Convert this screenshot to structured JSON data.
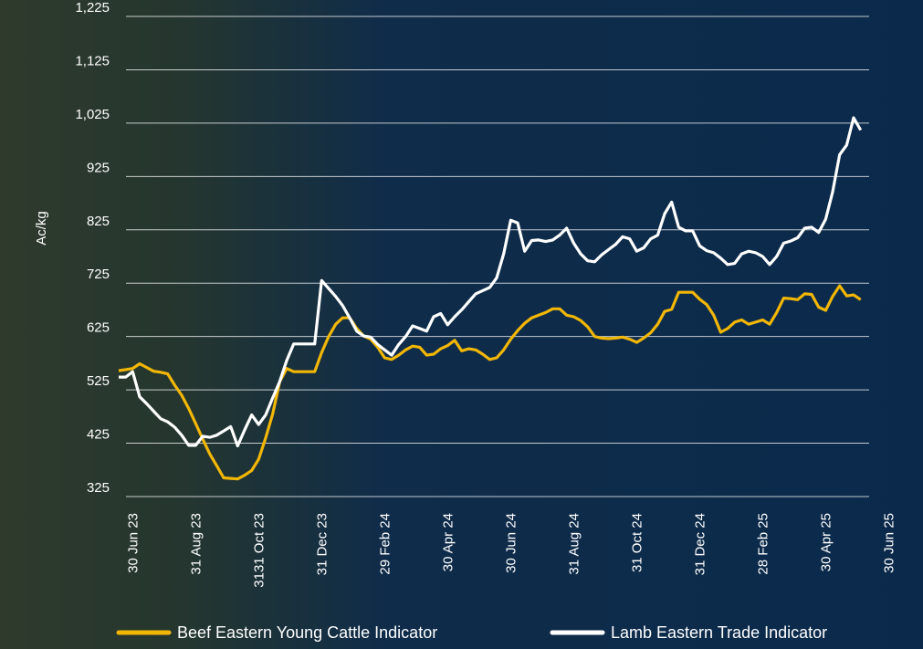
{
  "chart_data": {
    "type": "line",
    "y_label": "Ac/kg",
    "categories": [
      null,
      null,
      "30 Jun 23",
      null,
      null,
      null,
      null,
      null,
      null,
      null,
      null,
      "31 Aug 23",
      null,
      null,
      null,
      null,
      null,
      null,
      null,
      null,
      "3131 Oct 23",
      null,
      null,
      null,
      null,
      null,
      null,
      null,
      null,
      "31 Dec 23",
      null,
      null,
      null,
      null,
      null,
      null,
      null,
      null,
      "29 Feb 24",
      null,
      null,
      null,
      null,
      null,
      null,
      null,
      null,
      "30 Apr 24",
      null,
      null,
      null,
      null,
      null,
      null,
      null,
      null,
      "30 Jun 24",
      null,
      null,
      null,
      null,
      null,
      null,
      null,
      null,
      "31 Aug 24",
      null,
      null,
      null,
      null,
      null,
      null,
      null,
      null,
      "31 Oct 24",
      null,
      null,
      null,
      null,
      null,
      null,
      null,
      null,
      "31 Dec 24",
      null,
      null,
      null,
      null,
      null,
      null,
      null,
      null,
      "28 Feb 25",
      null,
      null,
      null,
      null,
      null,
      null,
      null,
      null,
      "30 Apr 25",
      null,
      null,
      null,
      null,
      null,
      null,
      null,
      null,
      "30 Jun 25"
    ],
    "series": [
      {
        "name": "Beef Eastern Young Cattle Indicator",
        "color": "#f2b705",
        "values": [
          561,
          563,
          565,
          574,
          567,
          560,
          558,
          555,
          534,
          515,
          490,
          462,
          433,
          405,
          383,
          360,
          359,
          358,
          365,
          374,
          395,
          435,
          480,
          540,
          565,
          559,
          559,
          559,
          559,
          595,
          625,
          648,
          660,
          660,
          640,
          626,
          620,
          605,
          585,
          582,
          590,
          600,
          607,
          605,
          590,
          592,
          602,
          608,
          618,
          598,
          602,
          600,
          592,
          582,
          585,
          600,
          620,
          636,
          650,
          660,
          665,
          670,
          677,
          677,
          665,
          662,
          655,
          643,
          625,
          622,
          621,
          622,
          624,
          620,
          614,
          622,
          632,
          648,
          672,
          676,
          708,
          708,
          708,
          695,
          685,
          665,
          633,
          640,
          652,
          656,
          648,
          652,
          656,
          648,
          670,
          697,
          696,
          694,
          705,
          704,
          680,
          674,
          700,
          720,
          701,
          703,
          694,
          null,
          null,
          null,
          null
        ]
      },
      {
        "name": "Lamb Eastern Trade Indicator",
        "color": "#ffffff",
        "values": [
          549,
          549,
          559,
          512,
          499,
          485,
          471,
          465,
          455,
          440,
          421,
          421,
          438,
          436,
          440,
          448,
          456,
          420,
          450,
          478,
          460,
          478,
          510,
          540,
          580,
          611,
          611,
          611,
          611,
          730,
          715,
          700,
          683,
          660,
          635,
          626,
          624,
          610,
          600,
          590,
          610,
          625,
          645,
          640,
          635,
          662,
          668,
          647,
          662,
          675,
          690,
          705,
          711,
          717,
          735,
          780,
          843,
          838,
          785,
          805,
          806,
          803,
          806,
          815,
          828,
          800,
          780,
          767,
          765,
          778,
          788,
          798,
          812,
          808,
          785,
          791,
          808,
          815,
          855,
          877,
          830,
          823,
          823,
          795,
          786,
          782,
          772,
          760,
          762,
          780,
          785,
          782,
          775,
          760,
          775,
          800,
          804,
          810,
          828,
          830,
          820,
          845,
          896,
          966,
          984,
          1035,
          1012,
          null,
          null,
          null,
          null
        ]
      }
    ],
    "ylim": [
      325,
      1225
    ],
    "yticks": [
      325,
      425,
      525,
      625,
      725,
      825,
      925,
      {
        "value": 1025,
        "label": "1,025"
      },
      {
        "value": 1125,
        "label": "1,125"
      },
      {
        "value": 1225,
        "label": "1,225"
      }
    ],
    "grid": true
  }
}
